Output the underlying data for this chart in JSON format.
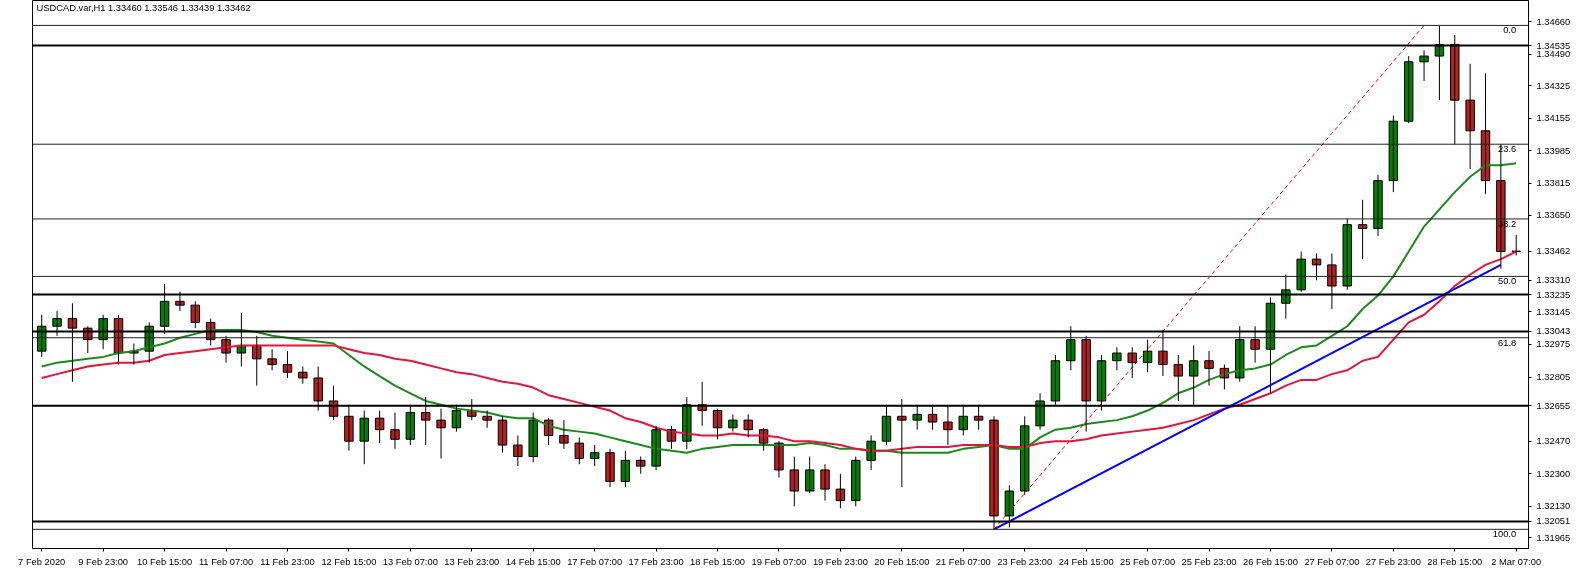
{
  "chart_data": {
    "type": "candlestick",
    "title": "USDCAD.var,H1  1.33460 1.33546 1.33439 1.33462",
    "categories": [
      "7 Feb 2020",
      null,
      null,
      null,
      "9 Feb 23:00",
      null,
      null,
      null,
      "10 Feb 15:00",
      null,
      null,
      null,
      "11 Feb 07:00",
      null,
      null,
      null,
      "11 Feb 23:00",
      null,
      null,
      null,
      "12 Feb 15:00",
      null,
      null,
      null,
      "13 Feb 07:00",
      null,
      null,
      null,
      "13 Feb 23:00",
      null,
      null,
      null,
      "14 Feb 15:00",
      null,
      null,
      null,
      "17 Feb 07:00",
      null,
      null,
      null,
      "17 Feb 23:00",
      null,
      null,
      null,
      "18 Feb 15:00",
      null,
      null,
      null,
      "19 Feb 07:00",
      null,
      null,
      null,
      "19 Feb 23:00",
      null,
      null,
      null,
      "20 Feb 15:00",
      null,
      null,
      null,
      "21 Feb 07:00",
      null,
      null,
      null,
      "23 Feb 23:00",
      null,
      null,
      null,
      "24 Feb 15:00",
      null,
      null,
      null,
      "25 Feb 07:00",
      null,
      null,
      null,
      "25 Feb 23:00",
      null,
      null,
      null,
      "26 Feb 15:00",
      null,
      null,
      null,
      "27 Feb 07:00",
      null,
      null,
      null,
      "27 Feb 23:00",
      null,
      null,
      null,
      "28 Feb 15:00",
      null,
      null,
      null,
      "2 Mar 07:00"
    ],
    "ohlc": [
      [
        1.3294,
        1.3313,
        1.3291,
        1.3307
      ],
      [
        1.3307,
        1.3315,
        1.3302,
        1.3311
      ],
      [
        1.3311,
        1.3319,
        1.3278,
        1.3306
      ],
      [
        1.3306,
        1.3307,
        1.3293,
        1.33
      ],
      [
        1.33,
        1.3313,
        1.3295,
        1.3311
      ],
      [
        1.3311,
        1.3313,
        1.3287,
        1.3293
      ],
      [
        1.3293,
        1.3298,
        1.3287,
        1.3294
      ],
      [
        1.3294,
        1.3309,
        1.3288,
        1.3307
      ],
      [
        1.3307,
        1.3329,
        1.3303,
        1.332
      ],
      [
        1.332,
        1.3325,
        1.3315,
        1.3318
      ],
      [
        1.3318,
        1.332,
        1.3306,
        1.3309
      ],
      [
        1.3309,
        1.3311,
        1.3297,
        1.33
      ],
      [
        1.33,
        1.3302,
        1.3288,
        1.3293
      ],
      [
        1.3293,
        1.3314,
        1.3286,
        1.3297
      ],
      [
        1.3297,
        1.3302,
        1.3276,
        1.329
      ],
      [
        1.329,
        1.3295,
        1.3284,
        1.3287
      ],
      [
        1.3287,
        1.3294,
        1.328,
        1.3283
      ],
      [
        1.3283,
        1.3286,
        1.3277,
        1.328
      ],
      [
        1.328,
        1.3286,
        1.3263,
        1.3268
      ],
      [
        1.3268,
        1.3276,
        1.3258,
        1.326
      ],
      [
        1.326,
        1.3266,
        1.3242,
        1.3247
      ],
      [
        1.3247,
        1.3263,
        1.3235,
        1.3259
      ],
      [
        1.3259,
        1.3263,
        1.3246,
        1.3253
      ],
      [
        1.3253,
        1.3262,
        1.3243,
        1.3248
      ],
      [
        1.3248,
        1.3266,
        1.3245,
        1.3262
      ],
      [
        1.3262,
        1.327,
        1.3245,
        1.3258
      ],
      [
        1.3258,
        1.3264,
        1.3238,
        1.3254
      ],
      [
        1.3254,
        1.3266,
        1.3252,
        1.3263
      ],
      [
        1.3263,
        1.3269,
        1.3258,
        1.326
      ],
      [
        1.326,
        1.3263,
        1.3254,
        1.3258
      ],
      [
        1.3258,
        1.326,
        1.3241,
        1.3245
      ],
      [
        1.3245,
        1.325,
        1.3234,
        1.3239
      ],
      [
        1.3239,
        1.3262,
        1.3236,
        1.3258
      ],
      [
        1.3258,
        1.3259,
        1.3245,
        1.325
      ],
      [
        1.325,
        1.3258,
        1.3243,
        1.3246
      ],
      [
        1.3246,
        1.3249,
        1.3235,
        1.3238
      ],
      [
        1.3238,
        1.3245,
        1.3234,
        1.3241
      ],
      [
        1.3241,
        1.3243,
        1.3223,
        1.3226
      ],
      [
        1.3226,
        1.3242,
        1.3223,
        1.3237
      ],
      [
        1.3237,
        1.3239,
        1.323,
        1.3234
      ],
      [
        1.3234,
        1.3255,
        1.3232,
        1.3253
      ],
      [
        1.3253,
        1.3255,
        1.3243,
        1.3247
      ],
      [
        1.3247,
        1.327,
        1.3243,
        1.3266
      ],
      [
        1.3266,
        1.3278,
        1.3255,
        1.3263
      ],
      [
        1.3263,
        1.3264,
        1.3248,
        1.3254
      ],
      [
        1.3254,
        1.3261,
        1.3252,
        1.3258
      ],
      [
        1.3258,
        1.3261,
        1.3249,
        1.3253
      ],
      [
        1.3253,
        1.3254,
        1.3242,
        1.3246
      ],
      [
        1.3246,
        1.3247,
        1.3228,
        1.3232
      ],
      [
        1.3232,
        1.3239,
        1.3213,
        1.3221
      ],
      [
        1.3221,
        1.3239,
        1.322,
        1.3232
      ],
      [
        1.3232,
        1.3235,
        1.3216,
        1.3222
      ],
      [
        1.3222,
        1.323,
        1.3212,
        1.3216
      ],
      [
        1.3216,
        1.3239,
        1.3213,
        1.3237
      ],
      [
        1.3237,
        1.325,
        1.3232,
        1.3247
      ],
      [
        1.3247,
        1.3266,
        1.3245,
        1.326
      ],
      [
        1.326,
        1.3269,
        1.3223,
        1.3258
      ],
      [
        1.3258,
        1.3266,
        1.3253,
        1.3261
      ],
      [
        1.3261,
        1.3266,
        1.3253,
        1.3257
      ],
      [
        1.3257,
        1.3266,
        1.3245,
        1.3253
      ],
      [
        1.3253,
        1.3266,
        1.325,
        1.326
      ],
      [
        1.326,
        1.3266,
        1.3253,
        1.3258
      ],
      [
        1.3258,
        1.326,
        1.3201,
        1.3208
      ],
      [
        1.3208,
        1.3224,
        1.3202,
        1.3221
      ],
      [
        1.3221,
        1.326,
        1.3219,
        1.3255
      ],
      [
        1.3255,
        1.3272,
        1.3253,
        1.3268
      ],
      [
        1.3268,
        1.3292,
        1.3266,
        1.3289
      ],
      [
        1.3289,
        1.3307,
        1.3284,
        1.33
      ],
      [
        1.33,
        1.3302,
        1.3252,
        1.3268
      ],
      [
        1.3268,
        1.3292,
        1.3263,
        1.3289
      ],
      [
        1.3289,
        1.3296,
        1.3284,
        1.3293
      ],
      [
        1.3293,
        1.3296,
        1.328,
        1.3288
      ],
      [
        1.3288,
        1.33,
        1.3283,
        1.3294
      ],
      [
        1.3294,
        1.3305,
        1.3281,
        1.3287
      ],
      [
        1.3287,
        1.3292,
        1.3268,
        1.3281
      ],
      [
        1.3281,
        1.3297,
        1.3266,
        1.3289
      ],
      [
        1.3289,
        1.3294,
        1.3276,
        1.3285
      ],
      [
        1.3285,
        1.3287,
        1.3274,
        1.328
      ],
      [
        1.328,
        1.3307,
        1.3278,
        1.33
      ],
      [
        1.33,
        1.3307,
        1.3288,
        1.3295
      ],
      [
        1.3295,
        1.3322,
        1.3272,
        1.3319
      ],
      [
        1.3319,
        1.3334,
        1.3311,
        1.3326
      ],
      [
        1.3326,
        1.3346,
        1.3325,
        1.3342
      ],
      [
        1.3342,
        1.3345,
        1.3331,
        1.3339
      ],
      [
        1.3339,
        1.3345,
        1.3316,
        1.3328
      ],
      [
        1.3328,
        1.3363,
        1.3326,
        1.336
      ],
      [
        1.336,
        1.3373,
        1.3342,
        1.3358
      ],
      [
        1.3358,
        1.3386,
        1.3354,
        1.3383
      ],
      [
        1.3383,
        1.3417,
        1.3377,
        1.3414
      ],
      [
        1.3414,
        1.3448,
        1.3413,
        1.3445
      ],
      [
        1.3445,
        1.3451,
        1.3435,
        1.3448
      ],
      [
        1.3448,
        1.3464,
        1.3425,
        1.3454
      ],
      [
        1.3454,
        1.3459,
        1.3402,
        1.3425
      ],
      [
        1.3425,
        1.3444,
        1.3389,
        1.3409
      ],
      [
        1.3409,
        1.3439,
        1.3376,
        1.3383
      ],
      [
        1.3383,
        1.3402,
        1.3337,
        1.3346
      ],
      [
        1.3346,
        1.33546,
        1.33439,
        1.33462
      ]
    ],
    "colors": [
      "#008000",
      "#008000",
      "#b22222",
      "#b22222",
      "#008000",
      "#b22222",
      "#008000",
      "#008000",
      "#008000",
      "#b22222",
      "#b22222",
      "#b22222",
      "#b22222",
      "#008000",
      "#b22222",
      "#b22222",
      "#b22222",
      "#b22222",
      "#b22222",
      "#b22222",
      "#b22222",
      "#008000",
      "#b22222",
      "#b22222",
      "#008000",
      "#b22222",
      "#b22222",
      "#008000",
      "#b22222",
      "#b22222",
      "#b22222",
      "#b22222",
      "#008000",
      "#b22222",
      "#b22222",
      "#b22222",
      "#008000",
      "#b22222",
      "#008000",
      "#b22222",
      "#008000",
      "#b22222",
      "#008000",
      "#b22222",
      "#b22222",
      "#008000",
      "#b22222",
      "#b22222",
      "#b22222",
      "#b22222",
      "#008000",
      "#b22222",
      "#b22222",
      "#008000",
      "#008000",
      "#008000",
      "#b22222",
      "#008000",
      "#b22222",
      "#b22222",
      "#008000",
      "#b22222",
      "#b22222",
      "#008000",
      "#008000",
      "#008000",
      "#008000",
      "#008000",
      "#b22222",
      "#008000",
      "#008000",
      "#b22222",
      "#008000",
      "#b22222",
      "#b22222",
      "#008000",
      "#b22222",
      "#b22222",
      "#008000",
      "#b22222",
      "#008000",
      "#008000",
      "#008000",
      "#b22222",
      "#b22222",
      "#008000",
      "#b22222",
      "#008000",
      "#008000",
      "#008000",
      "#008000",
      "#008000",
      "#b22222",
      "#b22222",
      "#b22222",
      "#b22222",
      "#008000"
    ],
    "series": [
      {
        "type": "line",
        "color": "#1a8a1a",
        "values": [
          1.3286,
          1.3288,
          1.3289,
          1.329,
          1.3291,
          1.3293,
          1.3294,
          1.3296,
          1.3298,
          1.3301,
          1.3303,
          1.3305,
          1.3305,
          1.3305,
          1.3304,
          1.3302,
          1.3301,
          1.33,
          1.3299,
          1.3298,
          1.3292,
          1.3286,
          1.3281,
          1.3276,
          1.3272,
          1.3268,
          1.3266,
          1.3264,
          1.3263,
          1.3262,
          1.326,
          1.3259,
          1.3259,
          1.3255,
          1.3253,
          1.3252,
          1.3251,
          1.3249,
          1.3247,
          1.3245,
          1.3243,
          1.3242,
          1.3241,
          1.3243,
          1.3244,
          1.3245,
          1.3245,
          1.3245,
          1.3245,
          1.3245,
          1.3246,
          1.3245,
          1.3243,
          1.3243,
          1.3242,
          1.3242,
          1.3241,
          1.3241,
          1.3241,
          1.3241,
          1.3243,
          1.3244,
          1.3245,
          1.3243,
          1.3243,
          1.3249,
          1.3253,
          1.3254,
          1.3256,
          1.3257,
          1.3258,
          1.326,
          1.3263,
          1.3267,
          1.3272,
          1.3275,
          1.3279,
          1.3282,
          1.3284,
          1.3285,
          1.3287,
          1.3292,
          1.3296,
          1.3297,
          1.3302,
          1.3307,
          1.3316,
          1.3323,
          1.3333,
          1.3346,
          1.3359,
          1.3368,
          1.3377,
          1.3385,
          1.3391,
          1.3391,
          1.3392
        ]
      },
      {
        "type": "line",
        "color": "#e0173c",
        "values": [
          1.328,
          1.3282,
          1.3284,
          1.3286,
          1.3287,
          1.3288,
          1.3288,
          1.3289,
          1.3292,
          1.3293,
          1.3294,
          1.3295,
          1.3296,
          1.3297,
          1.3297,
          1.3297,
          1.3297,
          1.3297,
          1.3297,
          1.3297,
          1.3295,
          1.3293,
          1.3292,
          1.329,
          1.3289,
          1.3287,
          1.3285,
          1.3283,
          1.3282,
          1.328,
          1.3278,
          1.3277,
          1.3275,
          1.3271,
          1.3269,
          1.3267,
          1.3265,
          1.3263,
          1.3259,
          1.3257,
          1.3254,
          1.3252,
          1.3251,
          1.325,
          1.325,
          1.3251,
          1.325,
          1.325,
          1.3249,
          1.3247,
          1.3247,
          1.3246,
          1.3245,
          1.3243,
          1.3242,
          1.3242,
          1.3243,
          1.3244,
          1.3244,
          1.3244,
          1.3245,
          1.3245,
          1.3245,
          1.3244,
          1.3244,
          1.3246,
          1.3247,
          1.3247,
          1.3248,
          1.325,
          1.3251,
          1.3252,
          1.3253,
          1.3254,
          1.3256,
          1.3258,
          1.3261,
          1.3264,
          1.3266,
          1.3269,
          1.3272,
          1.3276,
          1.3279,
          1.3279,
          1.3282,
          1.3284,
          1.3289,
          1.3291,
          1.33,
          1.3309,
          1.3313,
          1.332,
          1.3328,
          1.3334,
          1.3339,
          1.3342,
          1.3346
        ]
      },
      {
        "type": "line",
        "color": "#0000ff",
        "values": [
          null,
          null,
          null,
          null,
          null,
          null,
          null,
          null,
          null,
          null,
          null,
          null,
          null,
          null,
          null,
          null,
          null,
          null,
          null,
          null,
          null,
          null,
          null,
          null,
          null,
          null,
          null,
          null,
          null,
          null,
          null,
          null,
          null,
          null,
          null,
          null,
          null,
          null,
          null,
          null,
          null,
          null,
          null,
          null,
          null,
          null,
          null,
          null,
          null,
          null,
          null,
          null,
          null,
          null,
          null,
          null,
          null,
          null,
          null,
          null,
          null,
          null,
          1.3201,
          null,
          null,
          null,
          null,
          null,
          null,
          null,
          null,
          null,
          null,
          null,
          null,
          null,
          null,
          null,
          null,
          null,
          null,
          null,
          null,
          null,
          null,
          null,
          null,
          null,
          null,
          null,
          null,
          null,
          null,
          null,
          null,
          1.3339,
          null
        ]
      },
      {
        "type": "line",
        "color": "#ff0000",
        "line_style": "dashed",
        "values": [
          null,
          null,
          null,
          null,
          null,
          null,
          null,
          null,
          null,
          null,
          null,
          null,
          null,
          null,
          null,
          null,
          null,
          null,
          null,
          null,
          null,
          null,
          null,
          null,
          null,
          null,
          null,
          null,
          null,
          null,
          null,
          null,
          null,
          null,
          null,
          null,
          null,
          null,
          null,
          null,
          null,
          null,
          null,
          null,
          null,
          null,
          null,
          null,
          null,
          null,
          null,
          null,
          null,
          null,
          null,
          null,
          null,
          null,
          null,
          null,
          null,
          null,
          1.3201,
          null,
          null,
          null,
          null,
          null,
          null,
          null,
          null,
          null,
          null,
          null,
          null,
          null,
          null,
          null,
          null,
          null,
          null,
          null,
          null,
          null,
          null,
          null,
          null,
          null,
          null,
          null,
          1.3464,
          null,
          null,
          null,
          null,
          null,
          null
        ]
      }
    ],
    "ylim": [
      1.3191,
      1.3477
    ],
    "yticks": [
      {
        "value": 1.3466,
        "label": "1.34660"
      },
      {
        "value": 1.3449,
        "label": "1.34490"
      },
      {
        "value": 1.34325,
        "label": "1.34325"
      },
      {
        "value": 1.34155,
        "label": "1.34155"
      },
      {
        "value": 1.33985,
        "label": "1.33985"
      },
      {
        "value": 1.33815,
        "label": "1.33815"
      },
      {
        "value": 1.3365,
        "label": "1.33650"
      },
      {
        "value": 1.33462,
        "label": "1.33462"
      },
      {
        "value": 1.3331,
        "label": "1.33310"
      },
      {
        "value": 1.33145,
        "label": "1.33145"
      },
      {
        "value": 1.32975,
        "label": "1.32975"
      },
      {
        "value": 1.32805,
        "label": "1.32805"
      },
      {
        "value": 1.3247,
        "label": "1.32470"
      },
      {
        "value": 1.323,
        "label": "1.32300"
      },
      {
        "value": 1.3213,
        "label": "1.32130"
      },
      {
        "value": 1.31965,
        "label": "1.31965"
      }
    ],
    "ref_lines": [
      {
        "axis": "y",
        "value": 1.34535,
        "label": "1.34535",
        "color": "#000000"
      },
      {
        "axis": "y",
        "value": 1.33235,
        "label": "1.33235",
        "color": "#000000"
      },
      {
        "axis": "y",
        "value": 1.33043,
        "label": "1.33043",
        "color": "#000000"
      },
      {
        "axis": "y",
        "value": 1.32655,
        "label": "1.32655",
        "color": "#000000"
      },
      {
        "axis": "y",
        "value": 1.32051,
        "label": "1.32051",
        "color": "#000000"
      },
      {
        "axis": "y",
        "value": 1.3464,
        "color": "#222222"
      },
      {
        "axis": "y",
        "value": 1.3402,
        "color": "#222222"
      },
      {
        "axis": "y",
        "value": 1.3363,
        "color": "#222222"
      },
      {
        "axis": "y",
        "value": 1.3333,
        "color": "#222222"
      },
      {
        "axis": "y",
        "value": 1.3301,
        "color": "#222222"
      },
      {
        "axis": "y",
        "value": 1.3201,
        "color": "#222222"
      }
    ],
    "annotations": [
      {
        "text": "0.0",
        "x": "2 Mar 07:00",
        "y": 1.3464
      },
      {
        "text": "23.6",
        "x": "2 Mar 07:00",
        "y": 1.3402
      },
      {
        "text": "38.2",
        "x": "2 Mar 07:00",
        "y": 1.3363
      },
      {
        "text": "50.0",
        "x": "2 Mar 07:00",
        "y": 1.3333
      },
      {
        "text": "61.8",
        "x": "2 Mar 07:00",
        "y": 1.3301
      },
      {
        "text": "100.0",
        "x": "2 Mar 07:00",
        "y": 1.3201
      }
    ],
    "grid": false
  }
}
